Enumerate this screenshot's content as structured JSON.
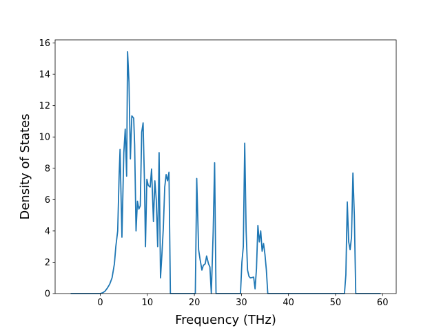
{
  "chart_data": {
    "type": "line",
    "x_label": "Frequency (THz)",
    "y_label": "Density of States",
    "color": "#1f77b4",
    "x": [
      -6.3,
      0,
      0.5,
      1,
      1.5,
      2,
      2.5,
      3,
      3.3,
      3.7,
      4,
      4.2,
      4.6,
      5.0,
      5.3,
      5.6,
      5.8,
      6.1,
      6.4,
      6.7,
      7.1,
      7.3,
      7.6,
      7.9,
      8.2,
      8.5,
      8.8,
      9.1,
      9.4,
      9.6,
      9.9,
      10.2,
      10.6,
      10.9,
      11.3,
      11.6,
      11.9,
      12.2,
      12.5,
      12.8,
      13.1,
      13.4,
      13.7,
      14.0,
      14.3,
      14.6,
      14.9,
      20.2,
      20.5,
      20.9,
      21.2,
      21.6,
      21.9,
      22.3,
      22.6,
      23.0,
      23.3,
      23.6,
      24.0,
      24.3,
      24.6,
      29.8,
      30.1,
      30.4,
      30.7,
      31.0,
      31.3,
      31.6,
      31.9,
      32.6,
      32.9,
      33.2,
      33.5,
      33.8,
      34.1,
      34.4,
      34.7,
      35.0,
      35.3,
      35.6,
      51.9,
      52.2,
      52.5,
      52.8,
      53.1,
      53.4,
      53.7,
      54.0,
      54.3,
      59.6
    ],
    "values": [
      0,
      0,
      0.05,
      0.15,
      0.35,
      0.6,
      1.0,
      1.9,
      3.0,
      4.0,
      7.5,
      9.2,
      3.6,
      9.0,
      10.5,
      7.5,
      15.45,
      13.5,
      8.6,
      11.35,
      11.2,
      9.5,
      4.0,
      5.9,
      5.4,
      5.6,
      10.3,
      10.9,
      7.0,
      3.0,
      7.3,
      6.9,
      6.8,
      7.95,
      4.6,
      7.2,
      6.0,
      3.0,
      9.0,
      1.0,
      2.5,
      4.2,
      6.8,
      7.6,
      7.2,
      7.75,
      0,
      0,
      7.35,
      2.8,
      2.2,
      1.5,
      1.8,
      1.9,
      2.4,
      1.9,
      1.7,
      0,
      4.0,
      8.35,
      0,
      0,
      2.0,
      3.0,
      9.6,
      4.0,
      1.5,
      1.1,
      1.0,
      1.05,
      0.3,
      1.6,
      4.35,
      3.3,
      4.0,
      2.7,
      3.2,
      2.5,
      1.5,
      0,
      0,
      1.2,
      5.85,
      3.3,
      2.8,
      3.6,
      7.7,
      5.0,
      0,
      0
    ],
    "xlim": [
      -9.6,
      62.9
    ],
    "ylim": [
      0,
      16.2
    ],
    "xticks": [
      0,
      10,
      20,
      30,
      40,
      50,
      60
    ],
    "yticks": [
      0,
      2,
      4,
      6,
      8,
      10,
      12,
      14,
      16
    ],
    "grid": false
  }
}
